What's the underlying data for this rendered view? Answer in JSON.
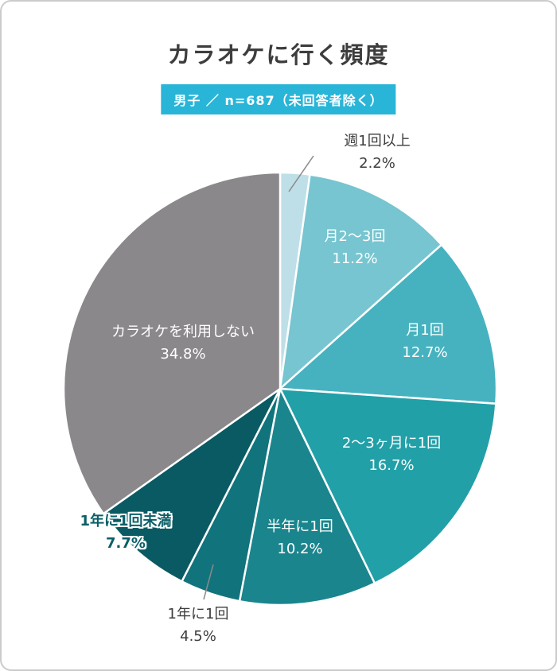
{
  "chart_data": {
    "type": "pie",
    "title": "カラオケに行く頻度",
    "subtitle": "男子 ／ n=687（未回答者除く）",
    "unit": "%",
    "direction": "clockwise",
    "start_angle_deg": 0,
    "legend_position": "on-slice",
    "slices": [
      {
        "label": "週1回以上",
        "value": 2.2,
        "value_label": "2.2%",
        "color": "#bedfe7"
      },
      {
        "label": "月2〜3回",
        "value": 11.2,
        "value_label": "11.2%",
        "color": "#76c5d0"
      },
      {
        "label": "月1回",
        "value": 12.7,
        "value_label": "12.7%",
        "color": "#46b2bf"
      },
      {
        "label": "2〜3ヶ月に1回",
        "value": 16.7,
        "value_label": "16.7%",
        "color": "#21a0a8"
      },
      {
        "label": "半年に1回",
        "value": 10.2,
        "value_label": "10.2%",
        "color": "#1a858d"
      },
      {
        "label": "1年に1回",
        "value": 4.5,
        "value_label": "4.5%",
        "color": "#11737c"
      },
      {
        "label": "1年に1回未満",
        "value": 7.7,
        "value_label": "7.7%",
        "color": "#0a5a63"
      },
      {
        "label": "カラオケを利用しない",
        "value": 34.8,
        "value_label": "34.8%",
        "color": "#8b888c"
      }
    ]
  },
  "colors": {
    "badge_background": "#29b5d8",
    "title_text": "#3d3d3d",
    "leader_line": "#8a8a8a",
    "slice_stroke": "#ffffff"
  }
}
